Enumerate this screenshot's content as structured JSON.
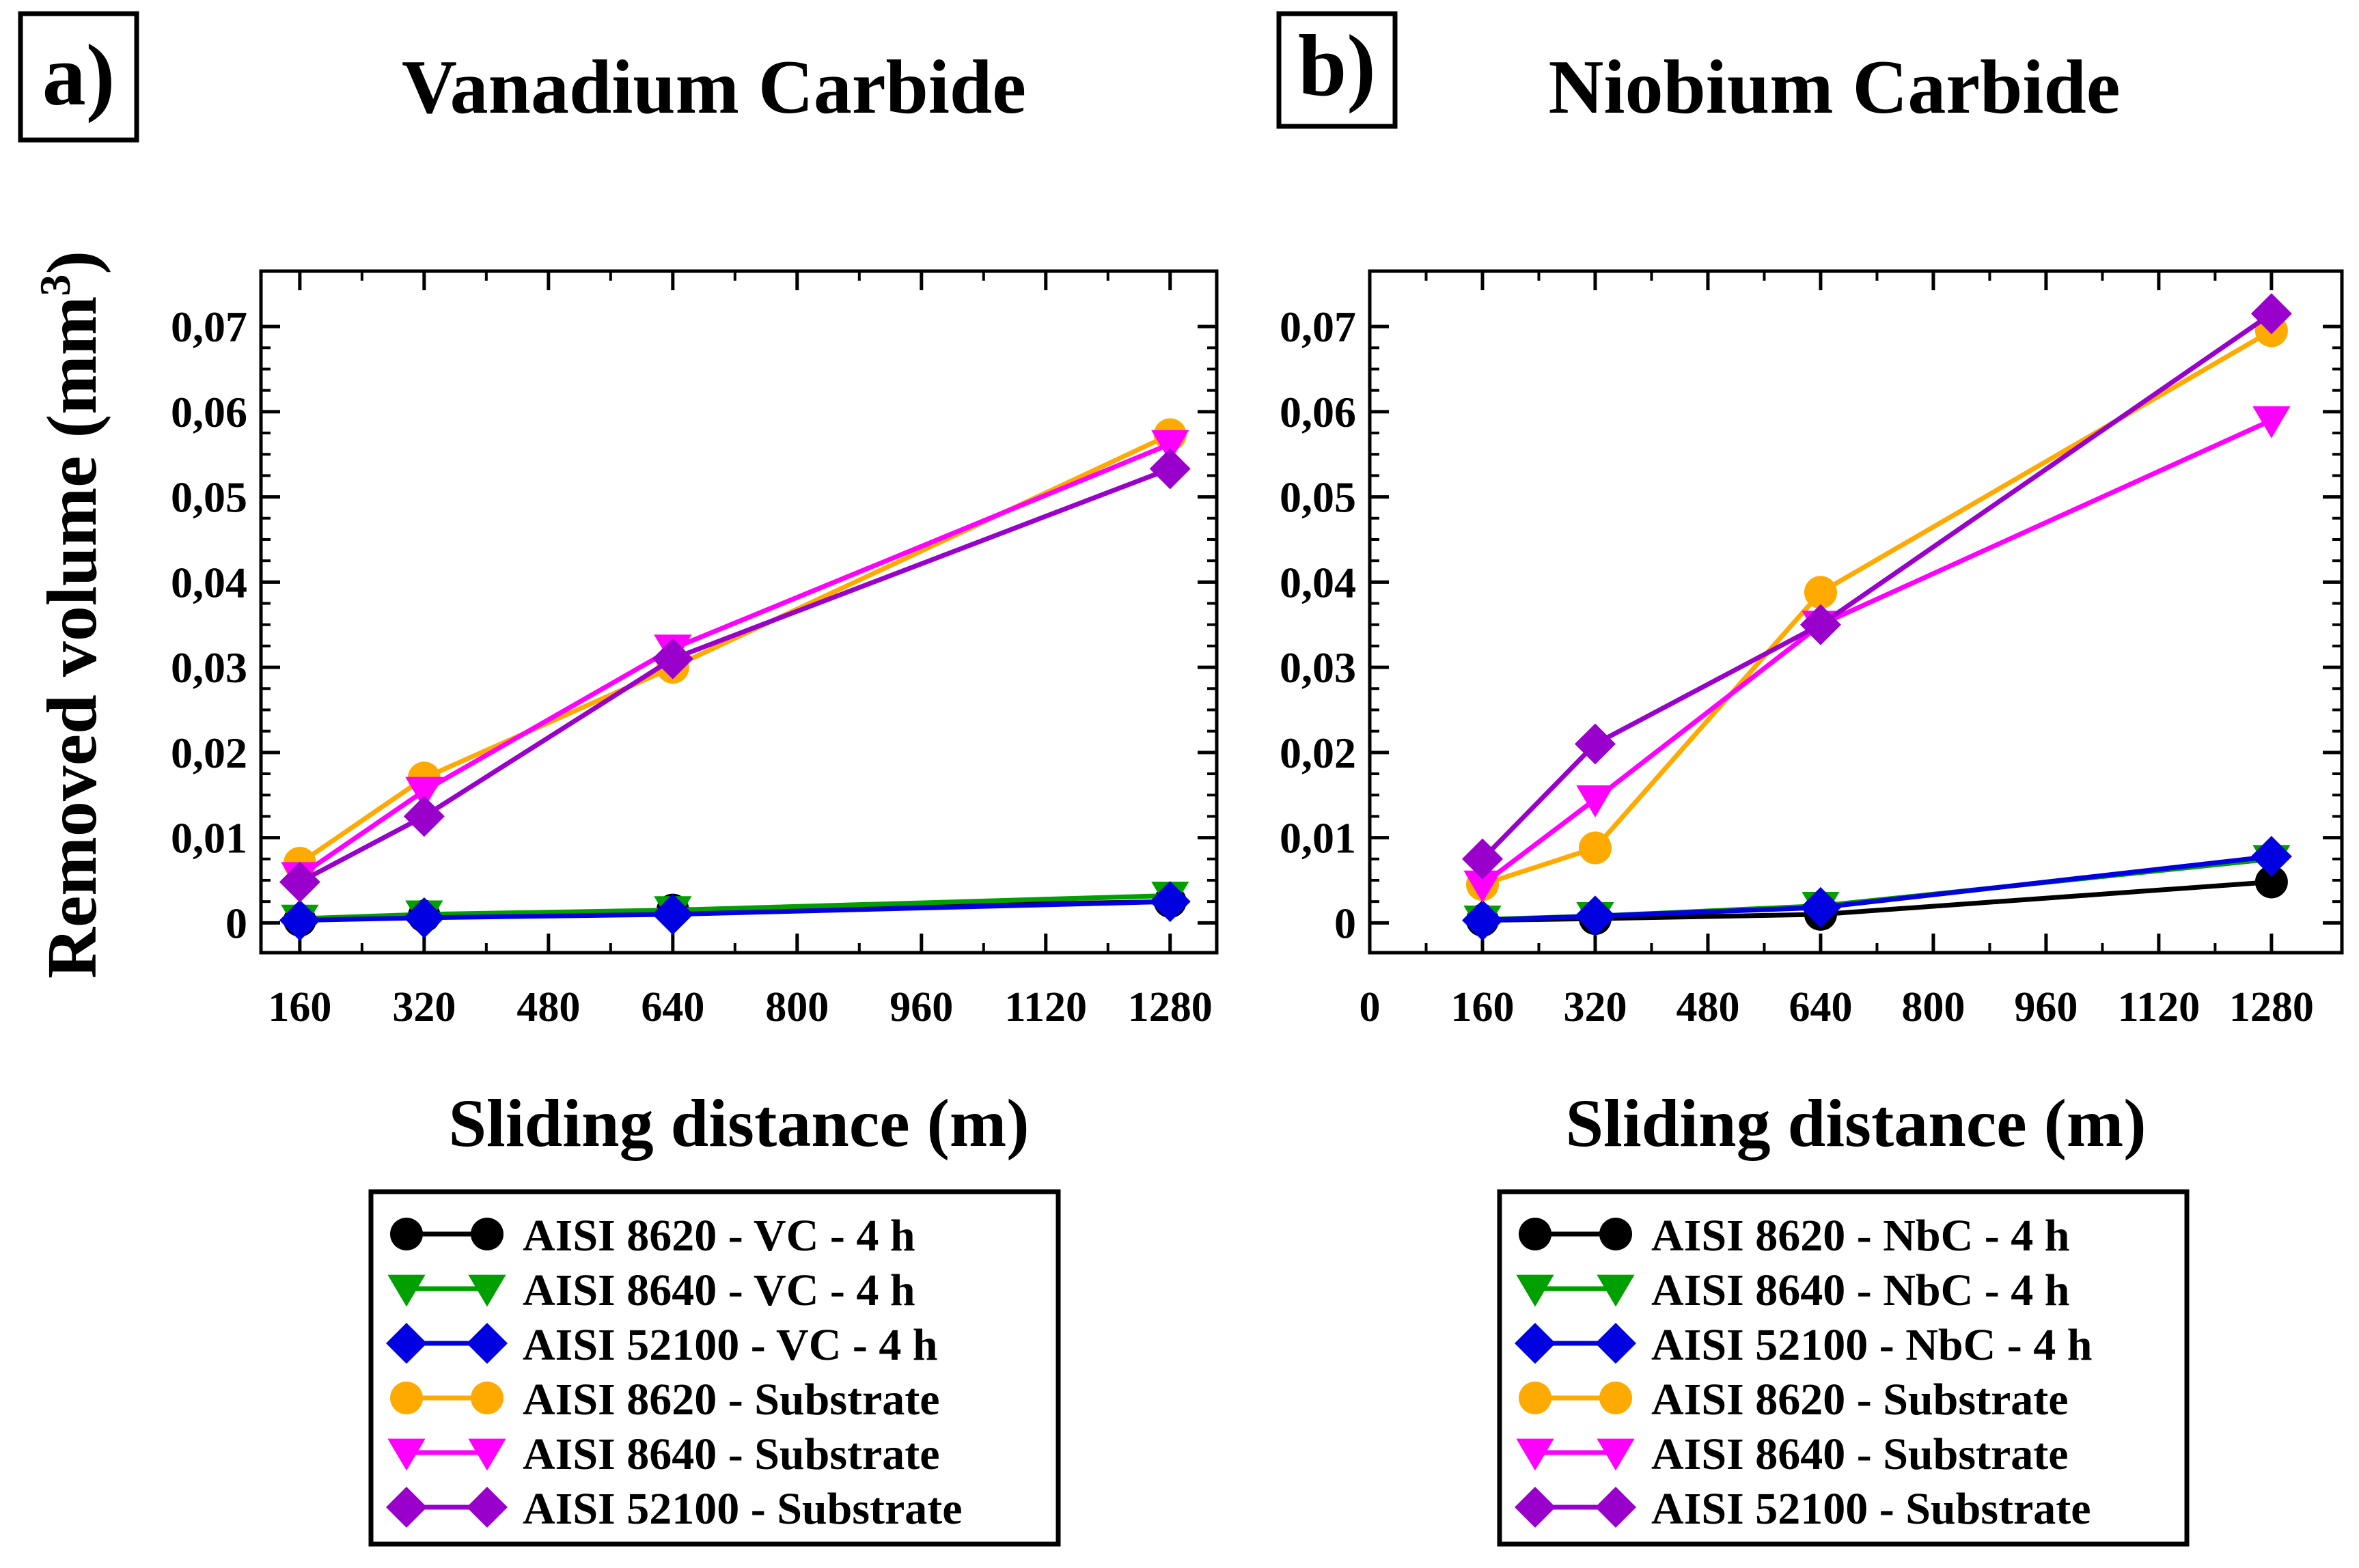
{
  "shared": {
    "ylabel_main": "Removed volume (mm",
    "ylabel_sup": "3",
    "ylabel_close": ")"
  },
  "chart_data": [
    {
      "type": "line",
      "panel_label": "a)",
      "title": "Vanadium Carbide",
      "xlabel": "Sliding distance  (m)",
      "xlim": [
        110,
        1340
      ],
      "ylim": [
        -0.0035,
        0.0765
      ],
      "xticks": [
        160,
        320,
        480,
        640,
        800,
        960,
        1120,
        1280
      ],
      "xtick_labels": [
        "160",
        "320",
        "480",
        "640",
        "800",
        "960",
        "1120",
        "1280"
      ],
      "yticks": [
        0,
        0.01,
        0.02,
        0.03,
        0.04,
        0.05,
        0.06,
        0.07
      ],
      "ytick_labels": [
        "0",
        "0,01",
        "0,02",
        "0,03",
        "0,04",
        "0,05",
        "0,06",
        "0,07"
      ],
      "x": [
        160,
        320,
        640,
        1280
      ],
      "series": [
        {
          "name": "AISI 8620 - VC - 4 h",
          "color": "#000000",
          "marker": "circle",
          "values": [
            0.0003,
            0.0008,
            0.0015,
            0.0025
          ]
        },
        {
          "name": "AISI 8640 - VC - 4 h",
          "color": "#00a000",
          "marker": "triangle-down",
          "values": [
            0.0005,
            0.001,
            0.0015,
            0.0032
          ]
        },
        {
          "name": "AISI 52100 - VC - 4 h",
          "color": "#0000e0",
          "marker": "diamond",
          "values": [
            0.0003,
            0.0006,
            0.001,
            0.0025
          ]
        },
        {
          "name": "AISI 8620 - Substrate",
          "color": "#ffaa00",
          "marker": "circle",
          "values": [
            0.007,
            0.017,
            0.03,
            0.0573
          ]
        },
        {
          "name": "AISI 8640 - Substrate",
          "color": "#ff00ff",
          "marker": "triangle-down",
          "values": [
            0.0055,
            0.0155,
            0.0322,
            0.0562
          ]
        },
        {
          "name": "AISI 52100 - Substrate",
          "color": "#9900cc",
          "marker": "diamond",
          "values": [
            0.0048,
            0.0125,
            0.031,
            0.0533
          ]
        }
      ]
    },
    {
      "type": "line",
      "panel_label": "b)",
      "title": "Niobium Carbide",
      "xlabel": "Sliding distance  (m)",
      "xlim": [
        0,
        1380
      ],
      "ylim": [
        -0.0035,
        0.0765
      ],
      "xticks": [
        0,
        160,
        320,
        480,
        640,
        800,
        960,
        1120,
        1280
      ],
      "xtick_labels": [
        "0",
        "160",
        "320",
        "480",
        "640",
        "800",
        "960",
        "1120",
        "1280"
      ],
      "yticks": [
        0,
        0.01,
        0.02,
        0.03,
        0.04,
        0.05,
        0.06,
        0.07
      ],
      "ytick_labels": [
        "0",
        "0,01",
        "0,02",
        "0,03",
        "0,04",
        "0,05",
        "0,06",
        "0,07"
      ],
      "x": [
        160,
        320,
        640,
        1280
      ],
      "series": [
        {
          "name": "AISI 8620 - NbC - 4 h",
          "color": "#000000",
          "marker": "circle",
          "values": [
            0.0003,
            0.0005,
            0.001,
            0.0048
          ]
        },
        {
          "name": "AISI 8640 - NbC - 4 h",
          "color": "#00a000",
          "marker": "triangle-down",
          "values": [
            0.0004,
            0.0008,
            0.002,
            0.0075
          ]
        },
        {
          "name": "AISI 52100 - NbC - 4 h",
          "color": "#0000e0",
          "marker": "diamond",
          "values": [
            0.0003,
            0.0008,
            0.0018,
            0.0078
          ]
        },
        {
          "name": "AISI 8620 - Substrate",
          "color": "#ffaa00",
          "marker": "circle",
          "values": [
            0.0045,
            0.0088,
            0.0388,
            0.0695
          ]
        },
        {
          "name": "AISI 8640 - Substrate",
          "color": "#ff00ff",
          "marker": "triangle-down",
          "values": [
            0.0045,
            0.0145,
            0.035,
            0.059
          ]
        },
        {
          "name": "AISI 52100 - Substrate",
          "color": "#9900cc",
          "marker": "diamond",
          "values": [
            0.0075,
            0.021,
            0.035,
            0.0715
          ]
        }
      ]
    }
  ]
}
